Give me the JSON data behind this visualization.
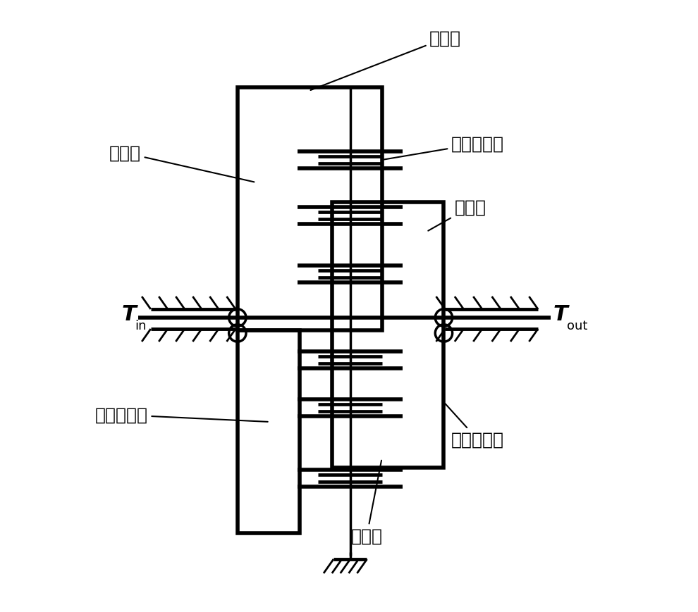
{
  "bg_color": "#ffffff",
  "line_color": "#000000",
  "lw_thick": 4.0,
  "lw_medium": 2.5,
  "lw_thin": 1.5,
  "figsize": [
    9.9,
    8.7
  ],
  "dpi": 100,
  "labels": {
    "inner_ring": "内齿圈",
    "planet_gear": "行星轮",
    "planet_bearing": "行星轮轴承",
    "planet_carrier": "行星架",
    "sun_bearing": "太阳轮轴承",
    "planet_carrier_bearing": "行星架轴承",
    "sun_gear": "太阳轮",
    "T_in": "T",
    "T_out": "T",
    "sub_in": "in",
    "sub_out": "out"
  }
}
